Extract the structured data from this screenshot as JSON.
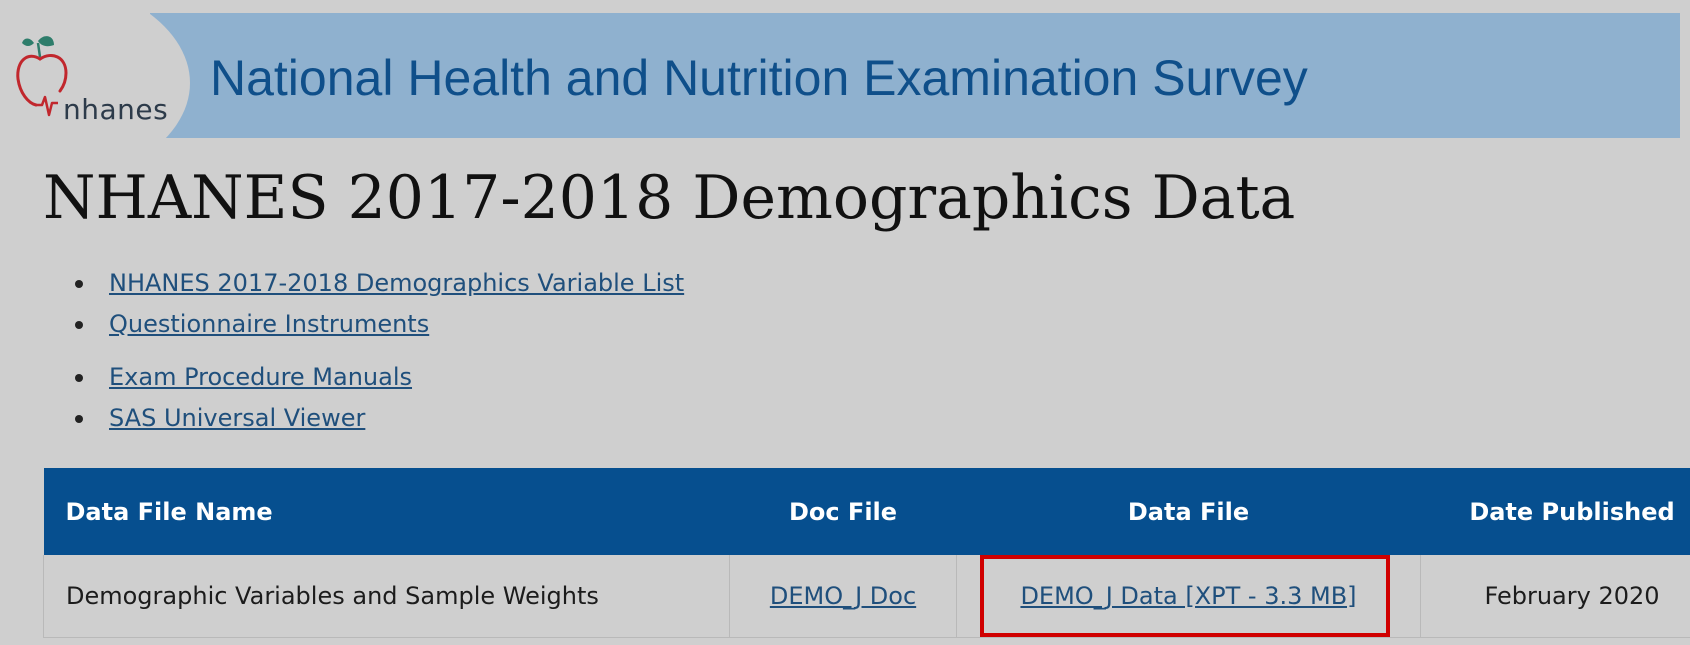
{
  "header": {
    "logo_text": "nhanes",
    "site_title": "National Health and Nutrition Examination Survey"
  },
  "page": {
    "title": "NHANES 2017-2018 Demographics Data"
  },
  "links": [
    {
      "label": "NHANES 2017-2018 Demographics Variable List"
    },
    {
      "label": "Questionnaire Instruments"
    },
    {
      "label": "Exam Procedure Manuals"
    },
    {
      "label": "SAS Universal Viewer"
    }
  ],
  "table": {
    "headers": [
      "Data File Name",
      "Doc File",
      "Data File",
      "Date Published"
    ],
    "rows": [
      {
        "name": "Demographic Variables and Sample Weights",
        "doc_file": "DEMO_J Doc",
        "data_file": "DEMO_J Data [XPT - 3.3 MB]",
        "date_published": "February 2020"
      }
    ]
  },
  "colors": {
    "banner": "#8fb1cf",
    "site_title": "#0f4f8a",
    "table_header": "#064f8f",
    "link": "#1f4f7c",
    "highlight": "#d00000",
    "logo_apple": "#c1272d",
    "logo_leaf": "#2e7d6b"
  },
  "icons": {
    "logo": "apple-heartbeat-logo"
  }
}
